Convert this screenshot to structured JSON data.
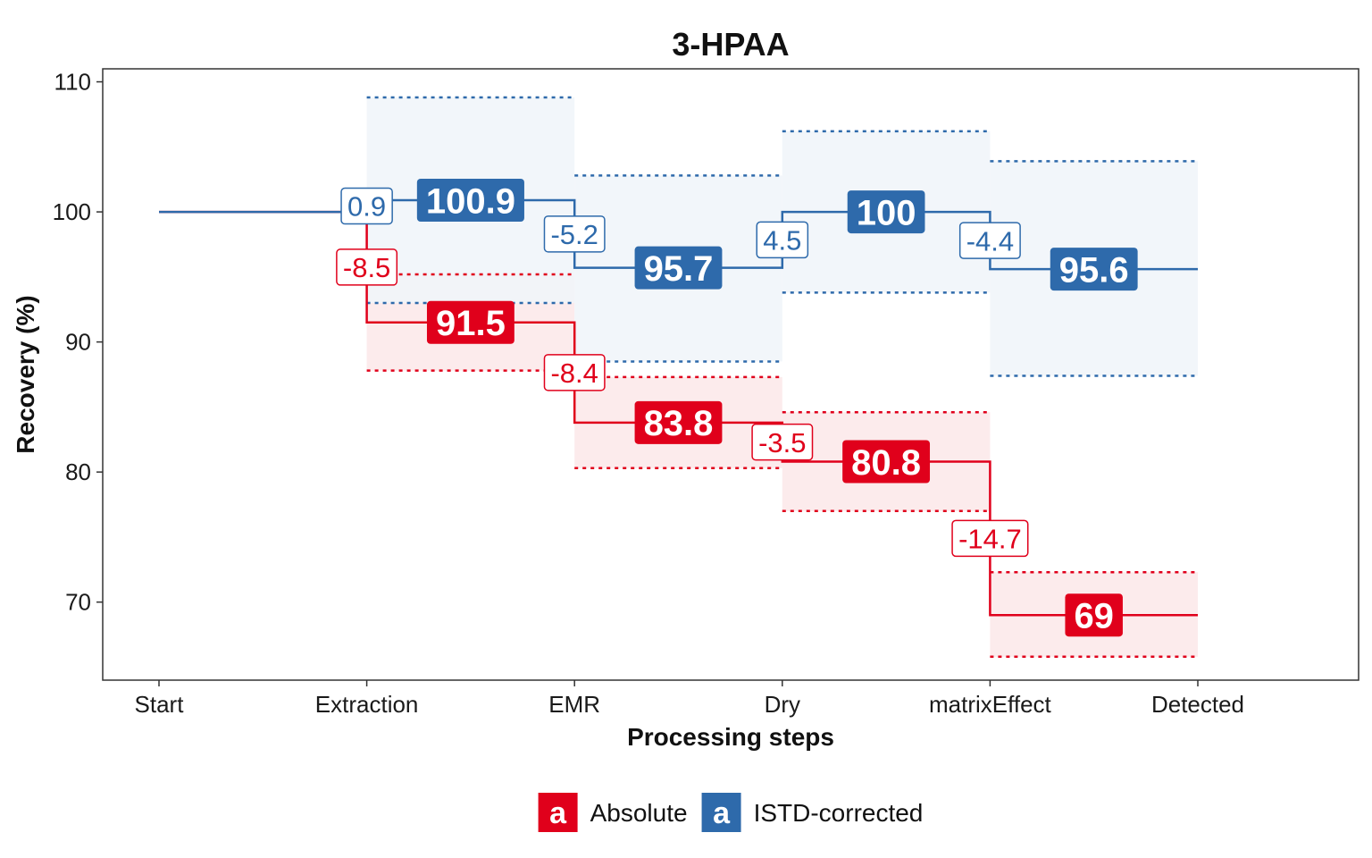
{
  "chart_data": {
    "type": "line",
    "subtype": "step-waterfall",
    "title": "3-HPAA",
    "xlabel": "Processing steps",
    "ylabel": "Recovery (%)",
    "categories": [
      "Start",
      "Extraction",
      "EMR",
      "Dry",
      "matrixEffect",
      "Detected"
    ],
    "y_ticks": [
      70,
      80,
      90,
      100,
      110
    ],
    "ylim": [
      64,
      111
    ],
    "grid": false,
    "legend_position": "bottom",
    "legend_key_letter": "a",
    "series": [
      {
        "name": "Absolute",
        "color": "#E0001B",
        "band_color": "#FCE9EA",
        "start_value": 100,
        "steps": [
          {
            "category": "Extraction",
            "delta": "-8.5",
            "value": 91.5,
            "band": [
              87.8,
              95.2
            ]
          },
          {
            "category": "EMR",
            "delta": "-8.4",
            "value": 83.8,
            "band": [
              80.3,
              87.3
            ]
          },
          {
            "category": "Dry",
            "delta": "-3.5",
            "value": 80.8,
            "band": [
              77.0,
              84.6
            ]
          },
          {
            "category": "matrixEffect",
            "delta": "-14.7",
            "value": 69,
            "band": [
              65.8,
              72.3
            ]
          }
        ]
      },
      {
        "name": "ISTD-corrected",
        "color": "#2E6AAB",
        "band_color": "#F1F5FA",
        "start_value": 100,
        "steps": [
          {
            "category": "Extraction",
            "delta": "0.9",
            "value": 100.9,
            "band": [
              93.0,
              108.8
            ]
          },
          {
            "category": "EMR",
            "delta": "-5.2",
            "value": 95.7,
            "band": [
              88.5,
              102.8
            ]
          },
          {
            "category": "Dry",
            "delta": "4.5",
            "value": 100,
            "band": [
              93.8,
              106.2
            ]
          },
          {
            "category": "matrixEffect",
            "delta": "-4.4",
            "value": 95.6,
            "band": [
              87.4,
              103.9
            ]
          }
        ]
      }
    ]
  }
}
